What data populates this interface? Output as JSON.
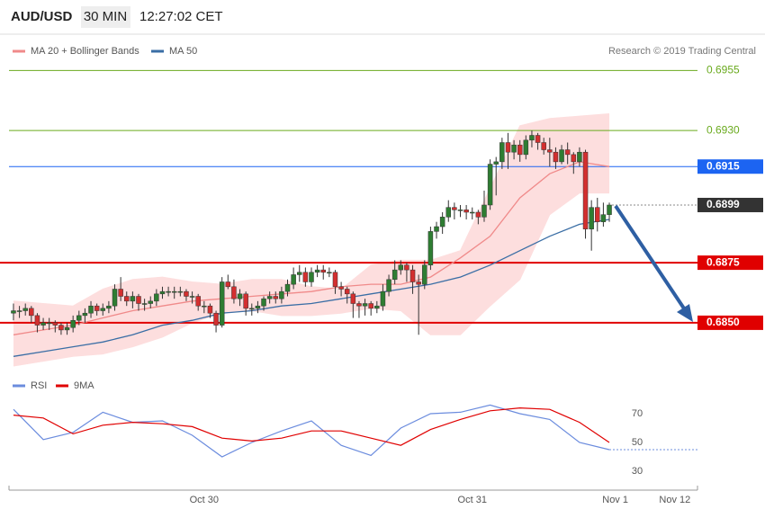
{
  "header": {
    "pair": "AUD/USD",
    "interval": "30 MIN",
    "time": "12:27:02 CET",
    "credit": "Research © 2019 Trading Central"
  },
  "chart_data": [
    {
      "type": "candlestick",
      "up_color": "#2e7d32",
      "down_color": "#d32f2f",
      "xlim": [
        -0.75,
        114.8
      ],
      "ylim": [
        0.6829,
        0.696
      ],
      "ohlc": [
        [
          0.6854,
          0.6858,
          0.6851,
          0.6855
        ],
        [
          0.6855,
          0.6857,
          0.6852,
          0.6855
        ],
        [
          0.6855,
          0.6858,
          0.6853,
          0.6856
        ],
        [
          0.6856,
          0.6857,
          0.685,
          0.6853
        ],
        [
          0.6853,
          0.6854,
          0.6846,
          0.6849
        ],
        [
          0.6849,
          0.6852,
          0.6847,
          0.685
        ],
        [
          0.685,
          0.6852,
          0.6847,
          0.685
        ],
        [
          0.685,
          0.6851,
          0.6846,
          0.6849
        ],
        [
          0.6849,
          0.685,
          0.6845,
          0.6847
        ],
        [
          0.6847,
          0.685,
          0.6845,
          0.6848
        ],
        [
          0.6848,
          0.6853,
          0.6846,
          0.6851
        ],
        [
          0.6851,
          0.6855,
          0.6849,
          0.6853
        ],
        [
          0.6853,
          0.6856,
          0.685,
          0.6854
        ],
        [
          0.6854,
          0.6859,
          0.6852,
          0.6857
        ],
        [
          0.6857,
          0.6858,
          0.6853,
          0.6855
        ],
        [
          0.6855,
          0.6858,
          0.6853,
          0.6856
        ],
        [
          0.6856,
          0.6859,
          0.6854,
          0.6857
        ],
        [
          0.6857,
          0.6866,
          0.6855,
          0.6864
        ],
        [
          0.6864,
          0.6869,
          0.6859,
          0.6861
        ],
        [
          0.6861,
          0.6863,
          0.6857,
          0.6859
        ],
        [
          0.6859,
          0.6863,
          0.6856,
          0.6861
        ],
        [
          0.6861,
          0.6862,
          0.6855,
          0.6858
        ],
        [
          0.6858,
          0.686,
          0.6855,
          0.6858
        ],
        [
          0.6858,
          0.6861,
          0.6856,
          0.6859
        ],
        [
          0.6859,
          0.6864,
          0.6857,
          0.6862
        ],
        [
          0.6862,
          0.6865,
          0.686,
          0.6863
        ],
        [
          0.6863,
          0.6865,
          0.6861,
          0.6863
        ],
        [
          0.6863,
          0.6865,
          0.686,
          0.6863
        ],
        [
          0.6863,
          0.6865,
          0.6861,
          0.6863
        ],
        [
          0.6863,
          0.6864,
          0.6859,
          0.6861
        ],
        [
          0.6861,
          0.6863,
          0.6858,
          0.6861
        ],
        [
          0.6861,
          0.6862,
          0.6855,
          0.6857
        ],
        [
          0.6857,
          0.6859,
          0.6854,
          0.6857
        ],
        [
          0.6857,
          0.6858,
          0.6852,
          0.6854
        ],
        [
          0.6854,
          0.6855,
          0.6846,
          0.6849
        ],
        [
          0.6849,
          0.6869,
          0.6848,
          0.6867
        ],
        [
          0.6867,
          0.687,
          0.6864,
          0.6865
        ],
        [
          0.6865,
          0.6868,
          0.6858,
          0.686
        ],
        [
          0.686,
          0.6864,
          0.6857,
          0.6862
        ],
        [
          0.6862,
          0.6863,
          0.6853,
          0.6856
        ],
        [
          0.6856,
          0.6858,
          0.6853,
          0.6856
        ],
        [
          0.6856,
          0.6859,
          0.6854,
          0.6857
        ],
        [
          0.6857,
          0.6861,
          0.6855,
          0.686
        ],
        [
          0.686,
          0.6863,
          0.6858,
          0.6861
        ],
        [
          0.6861,
          0.6863,
          0.6858,
          0.686
        ],
        [
          0.686,
          0.6865,
          0.6858,
          0.6863
        ],
        [
          0.6863,
          0.6868,
          0.6861,
          0.6866
        ],
        [
          0.6866,
          0.6873,
          0.6864,
          0.687
        ],
        [
          0.687,
          0.6874,
          0.6867,
          0.6871
        ],
        [
          0.6871,
          0.6873,
          0.6865,
          0.6867
        ],
        [
          0.6867,
          0.6873,
          0.6865,
          0.6871
        ],
        [
          0.6871,
          0.6874,
          0.6869,
          0.6872
        ],
        [
          0.6872,
          0.6874,
          0.6868,
          0.6871
        ],
        [
          0.6871,
          0.6873,
          0.6869,
          0.6871
        ],
        [
          0.6871,
          0.6872,
          0.6862,
          0.6865
        ],
        [
          0.6865,
          0.6867,
          0.6861,
          0.6864
        ],
        [
          0.6864,
          0.6865,
          0.6858,
          0.6862
        ],
        [
          0.6862,
          0.6863,
          0.6852,
          0.6858
        ],
        [
          0.6858,
          0.6859,
          0.6852,
          0.6857
        ],
        [
          0.6857,
          0.686,
          0.6853,
          0.6858
        ],
        [
          0.6858,
          0.6859,
          0.6853,
          0.6856
        ],
        [
          0.6856,
          0.6859,
          0.6854,
          0.6857
        ],
        [
          0.6857,
          0.6866,
          0.6855,
          0.6863
        ],
        [
          0.6863,
          0.687,
          0.6861,
          0.6868
        ],
        [
          0.6868,
          0.6876,
          0.6866,
          0.6872
        ],
        [
          0.6872,
          0.6876,
          0.687,
          0.6874
        ],
        [
          0.6874,
          0.6875,
          0.6867,
          0.6872
        ],
        [
          0.6872,
          0.6874,
          0.6862,
          0.6867
        ],
        [
          0.6867,
          0.687,
          0.6845,
          0.6866
        ],
        [
          0.6866,
          0.6876,
          0.6864,
          0.6874
        ],
        [
          0.6874,
          0.689,
          0.6872,
          0.6888
        ],
        [
          0.6888,
          0.6892,
          0.6885,
          0.689
        ],
        [
          0.689,
          0.6896,
          0.6887,
          0.6894
        ],
        [
          0.6894,
          0.6901,
          0.6892,
          0.6898
        ],
        [
          0.6898,
          0.69,
          0.6893,
          0.6897
        ],
        [
          0.6897,
          0.6899,
          0.6894,
          0.6897
        ],
        [
          0.6897,
          0.6899,
          0.6893,
          0.6896
        ],
        [
          0.6896,
          0.6898,
          0.6893,
          0.6896
        ],
        [
          0.6896,
          0.6897,
          0.6891,
          0.6894
        ],
        [
          0.6894,
          0.6905,
          0.6892,
          0.6899
        ],
        [
          0.6899,
          0.6918,
          0.6897,
          0.6916
        ],
        [
          0.6916,
          0.6919,
          0.6903,
          0.6917
        ],
        [
          0.6917,
          0.6927,
          0.6914,
          0.6925
        ],
        [
          0.6925,
          0.6929,
          0.6914,
          0.6921
        ],
        [
          0.6921,
          0.6926,
          0.6918,
          0.6924
        ],
        [
          0.6924,
          0.6926,
          0.6917,
          0.692
        ],
        [
          0.692,
          0.6928,
          0.6918,
          0.6926
        ],
        [
          0.6926,
          0.693,
          0.6923,
          0.6928
        ],
        [
          0.6928,
          0.6929,
          0.6922,
          0.6925
        ],
        [
          0.6925,
          0.6927,
          0.692,
          0.6922
        ],
        [
          0.6922,
          0.6927,
          0.6915,
          0.6921
        ],
        [
          0.6921,
          0.6923,
          0.6914,
          0.6917
        ],
        [
          0.6917,
          0.6924,
          0.6916,
          0.6922
        ],
        [
          0.6922,
          0.6925,
          0.6916,
          0.692
        ],
        [
          0.692,
          0.6921,
          0.6912,
          0.6917
        ],
        [
          0.6917,
          0.6923,
          0.6915,
          0.6921
        ],
        [
          0.6921,
          0.6922,
          0.6885,
          0.6889
        ],
        [
          0.6889,
          0.6901,
          0.688,
          0.6898
        ],
        [
          0.6898,
          0.6902,
          0.6888,
          0.6892
        ],
        [
          0.6892,
          0.69,
          0.689,
          0.6895
        ],
        [
          0.6895,
          0.69,
          0.6892,
          0.6899
        ]
      ],
      "x": [
        0,
        5,
        10,
        15,
        20,
        25,
        30,
        35,
        40,
        45,
        50,
        55,
        60,
        65,
        70,
        75,
        80,
        85,
        90,
        95,
        100
      ],
      "bands": {
        "color": "#fddede",
        "upper": [
          0.6859,
          0.6858,
          0.6857,
          0.6864,
          0.6868,
          0.6869,
          0.6867,
          0.6866,
          0.6868,
          0.6868,
          0.6865,
          0.6864,
          0.6874,
          0.6876,
          0.6876,
          0.688,
          0.6906,
          0.6932,
          0.6935,
          0.6936,
          0.6937
        ],
        "lower": [
          0.6832,
          0.6834,
          0.6836,
          0.6837,
          0.684,
          0.6844,
          0.685,
          0.6854,
          0.6855,
          0.6853,
          0.6853,
          0.6854,
          0.6856,
          0.6855,
          0.6845,
          0.6845,
          0.6857,
          0.6868,
          0.6895,
          0.6904,
          0.6904
        ]
      },
      "series": [
        {
          "name": "MA 20 + Bollinger Bands",
          "color": "#f08a8a",
          "values": [
            0.6845,
            0.6847,
            0.6849,
            0.6852,
            0.6855,
            0.6857,
            0.6859,
            0.686,
            0.6861,
            0.6862,
            0.6863,
            0.6865,
            0.6866,
            0.6866,
            0.6869,
            0.6877,
            0.6886,
            0.6902,
            0.6912,
            0.6917,
            0.6915
          ]
        },
        {
          "name": "MA 50",
          "color": "#3a6ea5",
          "values": [
            0.6836,
            0.6838,
            0.684,
            0.6842,
            0.6845,
            0.6849,
            0.6851,
            0.6854,
            0.6855,
            0.6857,
            0.6858,
            0.686,
            0.6862,
            0.6864,
            0.6866,
            0.6869,
            0.6874,
            0.688,
            0.6886,
            0.6891,
            0.6893
          ]
        }
      ],
      "levels": [
        {
          "value": 0.6955,
          "label": "0.6955",
          "color": "#6aaa1e",
          "box": false,
          "dashed": false
        },
        {
          "value": 0.693,
          "label": "0.6930",
          "color": "#6aaa1e",
          "box": false,
          "dashed": false
        },
        {
          "value": 0.6915,
          "label": "0.6915",
          "color": "#1c64f2",
          "box": true,
          "dashed": false
        },
        {
          "value": 0.6899,
          "label": "0.6899",
          "color": "#333333",
          "box": true,
          "dashed": true
        },
        {
          "value": 0.6875,
          "label": "0.6875",
          "color": "#e00000",
          "box": true,
          "dashed": false
        },
        {
          "value": 0.685,
          "label": "0.6850",
          "color": "#e00000",
          "box": true,
          "dashed": false
        }
      ]
    },
    {
      "type": "line",
      "xlim": [
        -0.75,
        114.8
      ],
      "ylim": [
        20,
        82.5
      ],
      "yticks": [
        30,
        50,
        70
      ],
      "x": [
        0,
        5,
        10,
        15,
        20,
        25,
        30,
        35,
        40,
        45,
        50,
        55,
        60,
        65,
        70,
        75,
        80,
        85,
        90,
        95,
        100
      ],
      "xticks": [
        {
          "value": 32,
          "label": "Oct 30"
        },
        {
          "value": 77,
          "label": "Oct 31"
        },
        {
          "value": 101,
          "label": "Nov 1"
        },
        {
          "value": 111,
          "label": "Nov 12"
        }
      ],
      "series": [
        {
          "name": "RSI",
          "color": "#6b8cde",
          "values": [
            73,
            52,
            57,
            71,
            64,
            65,
            55,
            40,
            50,
            58,
            65,
            48,
            41,
            60,
            70,
            71,
            76,
            70,
            66,
            50,
            45
          ]
        },
        {
          "name": "9MA",
          "color": "#e00000",
          "values": [
            69,
            67,
            56,
            62,
            64,
            63,
            61,
            53,
            51,
            53,
            58,
            58,
            53,
            48,
            59,
            66,
            72,
            74,
            73,
            64,
            50
          ]
        }
      ]
    }
  ]
}
